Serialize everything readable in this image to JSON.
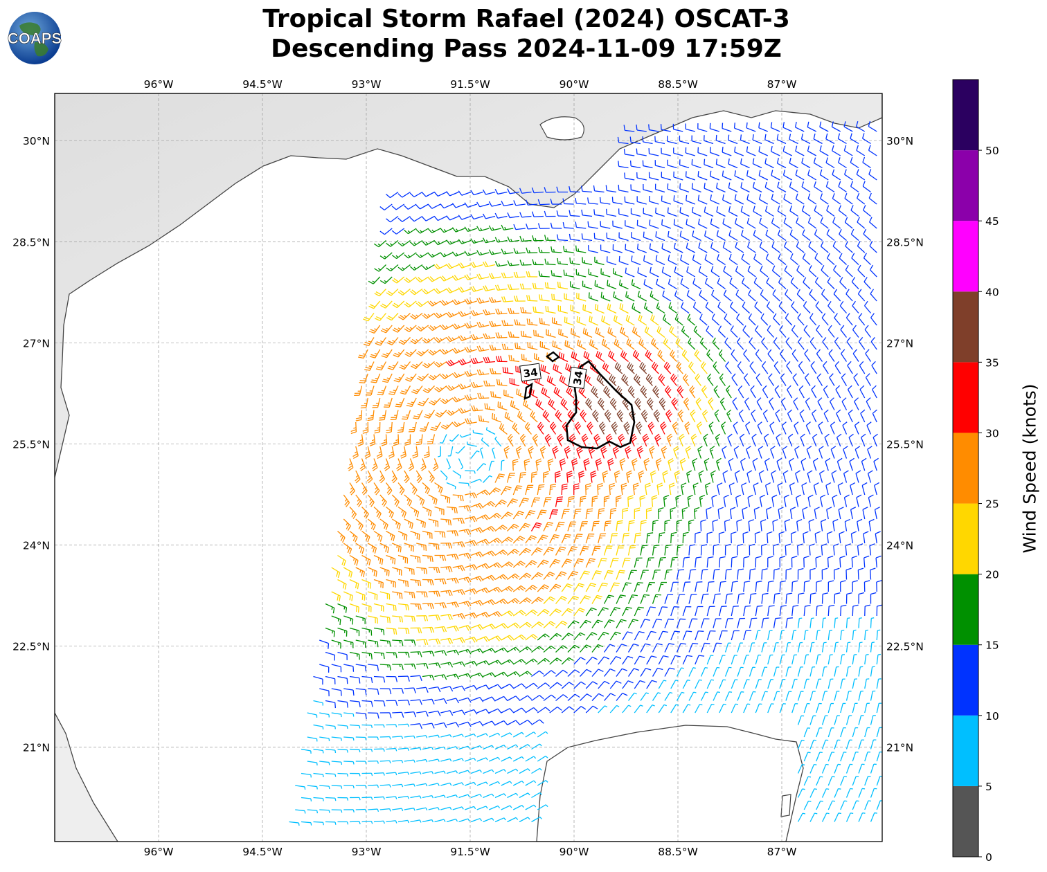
{
  "title": {
    "line1": "Tropical Storm Rafael (2024) OSCAT-3",
    "line2": "Descending Pass 2024-11-09 17:59Z"
  },
  "logo": {
    "text": "COAPS",
    "icon": "globe-logo-icon"
  },
  "map": {
    "lon_labels": [
      "96°W",
      "94.5°W",
      "93°W",
      "91.5°W",
      "90°W",
      "88.5°W",
      "87°W"
    ],
    "lon_values": [
      -96,
      -94.5,
      -93,
      -91.5,
      -90,
      -88.5,
      -87
    ],
    "lat_labels": [
      "30°N",
      "28.5°N",
      "27°N",
      "25.5°N",
      "24°N",
      "22.5°N",
      "21°N"
    ],
    "lat_values": [
      30,
      28.5,
      27,
      25.5,
      24,
      22.5,
      21
    ],
    "extent": {
      "lon_min": -97.5,
      "lon_max": -85.55,
      "lat_min": 19.6,
      "lat_max": 30.7
    },
    "storm_center": {
      "lon": -91.5,
      "lat": 25.3
    },
    "contour_labels": [
      "34",
      "34"
    ],
    "contour_level_knots": 34,
    "swath_note": "wind barbs"
  },
  "colorbar": {
    "label": "Wind Speed (knots)",
    "ticks": [
      "0",
      "5",
      "10",
      "15",
      "20",
      "25",
      "30",
      "35",
      "40",
      "45",
      "50"
    ],
    "bins": [
      {
        "from": 0,
        "to": 5,
        "color": "#555555"
      },
      {
        "from": 5,
        "to": 10,
        "color": "#00bfff"
      },
      {
        "from": 10,
        "to": 15,
        "color": "#0033ff"
      },
      {
        "from": 15,
        "to": 20,
        "color": "#009000"
      },
      {
        "from": 20,
        "to": 25,
        "color": "#ffd700"
      },
      {
        "from": 25,
        "to": 30,
        "color": "#ff8c00"
      },
      {
        "from": 30,
        "to": 35,
        "color": "#ff0000"
      },
      {
        "from": 35,
        "to": 40,
        "color": "#7f3f2a"
      },
      {
        "from": 40,
        "to": 45,
        "color": "#ff00ff"
      },
      {
        "from": 45,
        "to": 50,
        "color": "#8b00aa"
      },
      {
        "from": 50,
        "to": 55,
        "color": "#2b0060"
      }
    ]
  }
}
